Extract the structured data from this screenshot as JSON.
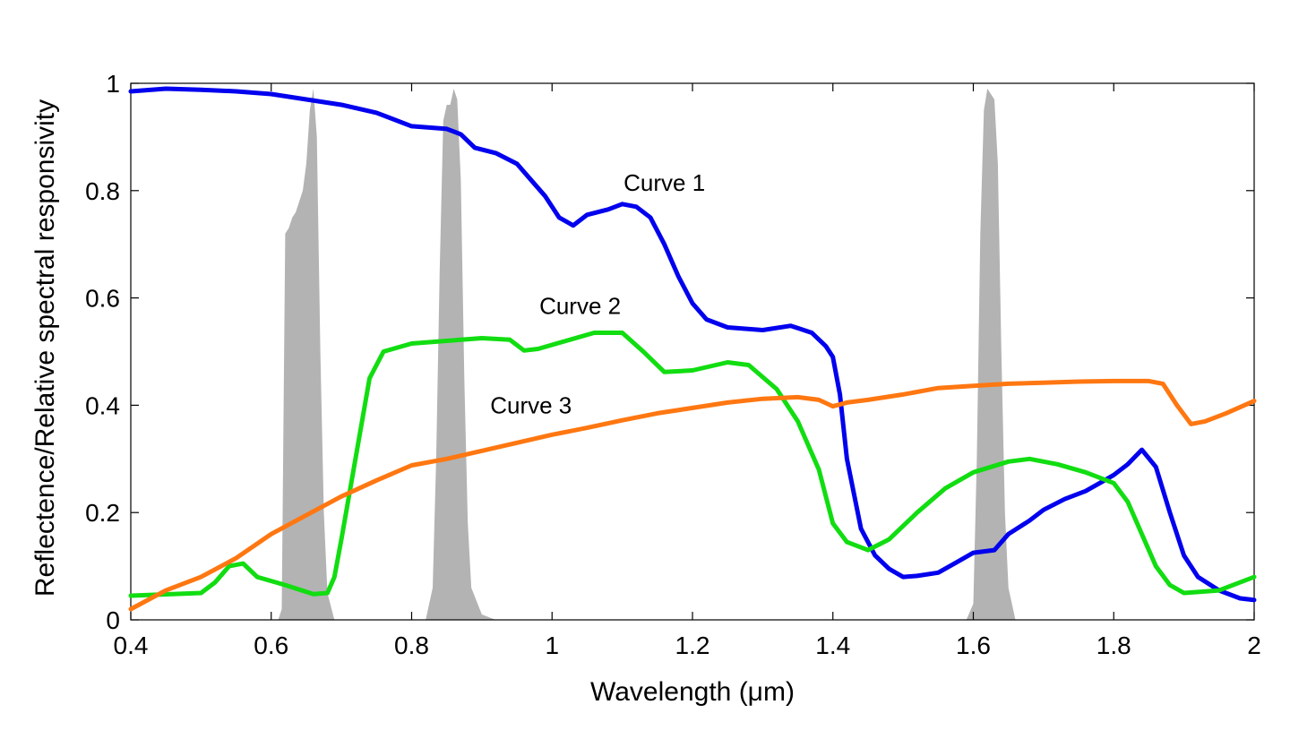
{
  "chart_data": {
    "type": "line",
    "xlabel": "Wavelength (μm)",
    "ylabel": "Reflectence/Relative spectral responsivity",
    "xlim": [
      0.4,
      2.0
    ],
    "ylim": [
      0,
      1.0
    ],
    "x_ticks": [
      0.4,
      0.6,
      0.8,
      1.0,
      1.2,
      1.4,
      1.6,
      1.8,
      2.0
    ],
    "x_tick_labels": [
      "0.4",
      "0.6",
      "0.8",
      "1",
      "1.2",
      "1.4",
      "1.6",
      "1.8",
      "2"
    ],
    "y_ticks": [
      0,
      0.2,
      0.4,
      0.6,
      0.8,
      1.0
    ],
    "y_tick_labels": [
      "0",
      "0.2",
      "0.4",
      "0.6",
      "0.8",
      "1"
    ],
    "grid": false,
    "series": [
      {
        "name": "Curve 1",
        "color": "#0000ee",
        "label_at": [
          1.16,
          0.8
        ],
        "points": [
          [
            0.4,
            0.985
          ],
          [
            0.45,
            0.99
          ],
          [
            0.5,
            0.988
          ],
          [
            0.55,
            0.985
          ],
          [
            0.6,
            0.98
          ],
          [
            0.65,
            0.97
          ],
          [
            0.7,
            0.96
          ],
          [
            0.75,
            0.945
          ],
          [
            0.8,
            0.92
          ],
          [
            0.85,
            0.915
          ],
          [
            0.87,
            0.905
          ],
          [
            0.89,
            0.88
          ],
          [
            0.92,
            0.87
          ],
          [
            0.95,
            0.85
          ],
          [
            0.97,
            0.82
          ],
          [
            0.99,
            0.79
          ],
          [
            1.01,
            0.75
          ],
          [
            1.03,
            0.735
          ],
          [
            1.05,
            0.755
          ],
          [
            1.08,
            0.765
          ],
          [
            1.1,
            0.775
          ],
          [
            1.12,
            0.77
          ],
          [
            1.14,
            0.75
          ],
          [
            1.16,
            0.7
          ],
          [
            1.18,
            0.64
          ],
          [
            1.2,
            0.59
          ],
          [
            1.22,
            0.56
          ],
          [
            1.25,
            0.545
          ],
          [
            1.3,
            0.54
          ],
          [
            1.34,
            0.548
          ],
          [
            1.37,
            0.535
          ],
          [
            1.39,
            0.51
          ],
          [
            1.4,
            0.49
          ],
          [
            1.41,
            0.42
          ],
          [
            1.42,
            0.3
          ],
          [
            1.44,
            0.17
          ],
          [
            1.46,
            0.12
          ],
          [
            1.48,
            0.095
          ],
          [
            1.5,
            0.08
          ],
          [
            1.52,
            0.082
          ],
          [
            1.55,
            0.088
          ],
          [
            1.58,
            0.11
          ],
          [
            1.6,
            0.125
          ],
          [
            1.63,
            0.13
          ],
          [
            1.65,
            0.16
          ],
          [
            1.68,
            0.185
          ],
          [
            1.7,
            0.205
          ],
          [
            1.73,
            0.225
          ],
          [
            1.76,
            0.24
          ],
          [
            1.78,
            0.255
          ],
          [
            1.8,
            0.27
          ],
          [
            1.82,
            0.29
          ],
          [
            1.84,
            0.317
          ],
          [
            1.86,
            0.285
          ],
          [
            1.88,
            0.2
          ],
          [
            1.9,
            0.12
          ],
          [
            1.92,
            0.08
          ],
          [
            1.95,
            0.055
          ],
          [
            1.98,
            0.04
          ],
          [
            2.0,
            0.037
          ]
        ]
      },
      {
        "name": "Curve 2",
        "color": "#11dd11",
        "label_at": [
          1.04,
          0.57
        ],
        "points": [
          [
            0.4,
            0.045
          ],
          [
            0.5,
            0.05
          ],
          [
            0.52,
            0.07
          ],
          [
            0.54,
            0.1
          ],
          [
            0.56,
            0.105
          ],
          [
            0.58,
            0.08
          ],
          [
            0.62,
            0.065
          ],
          [
            0.66,
            0.048
          ],
          [
            0.68,
            0.05
          ],
          [
            0.69,
            0.08
          ],
          [
            0.7,
            0.15
          ],
          [
            0.72,
            0.3
          ],
          [
            0.74,
            0.45
          ],
          [
            0.76,
            0.5
          ],
          [
            0.8,
            0.515
          ],
          [
            0.85,
            0.52
          ],
          [
            0.9,
            0.525
          ],
          [
            0.94,
            0.522
          ],
          [
            0.96,
            0.502
          ],
          [
            0.98,
            0.505
          ],
          [
            1.02,
            0.52
          ],
          [
            1.06,
            0.535
          ],
          [
            1.1,
            0.535
          ],
          [
            1.13,
            0.5
          ],
          [
            1.16,
            0.462
          ],
          [
            1.2,
            0.465
          ],
          [
            1.25,
            0.48
          ],
          [
            1.28,
            0.475
          ],
          [
            1.32,
            0.43
          ],
          [
            1.35,
            0.37
          ],
          [
            1.38,
            0.28
          ],
          [
            1.4,
            0.18
          ],
          [
            1.42,
            0.145
          ],
          [
            1.45,
            0.13
          ],
          [
            1.48,
            0.15
          ],
          [
            1.52,
            0.2
          ],
          [
            1.56,
            0.245
          ],
          [
            1.6,
            0.275
          ],
          [
            1.65,
            0.295
          ],
          [
            1.68,
            0.3
          ],
          [
            1.72,
            0.29
          ],
          [
            1.76,
            0.275
          ],
          [
            1.8,
            0.255
          ],
          [
            1.82,
            0.22
          ],
          [
            1.84,
            0.16
          ],
          [
            1.86,
            0.1
          ],
          [
            1.88,
            0.065
          ],
          [
            1.9,
            0.05
          ],
          [
            1.95,
            0.055
          ],
          [
            2.0,
            0.08
          ]
        ]
      },
      {
        "name": "Curve 3",
        "color": "#ff7711",
        "label_at": [
          0.97,
          0.385
        ],
        "points": [
          [
            0.4,
            0.02
          ],
          [
            0.45,
            0.055
          ],
          [
            0.5,
            0.08
          ],
          [
            0.55,
            0.115
          ],
          [
            0.6,
            0.16
          ],
          [
            0.65,
            0.195
          ],
          [
            0.7,
            0.23
          ],
          [
            0.75,
            0.26
          ],
          [
            0.8,
            0.288
          ],
          [
            0.85,
            0.3
          ],
          [
            0.9,
            0.315
          ],
          [
            0.95,
            0.33
          ],
          [
            1.0,
            0.345
          ],
          [
            1.05,
            0.358
          ],
          [
            1.1,
            0.372
          ],
          [
            1.15,
            0.385
          ],
          [
            1.2,
            0.395
          ],
          [
            1.25,
            0.405
          ],
          [
            1.3,
            0.412
          ],
          [
            1.35,
            0.415
          ],
          [
            1.38,
            0.41
          ],
          [
            1.4,
            0.398
          ],
          [
            1.42,
            0.405
          ],
          [
            1.45,
            0.41
          ],
          [
            1.5,
            0.42
          ],
          [
            1.55,
            0.432
          ],
          [
            1.6,
            0.436
          ],
          [
            1.65,
            0.44
          ],
          [
            1.7,
            0.442
          ],
          [
            1.75,
            0.444
          ],
          [
            1.8,
            0.445
          ],
          [
            1.85,
            0.445
          ],
          [
            1.87,
            0.44
          ],
          [
            1.89,
            0.4
          ],
          [
            1.91,
            0.365
          ],
          [
            1.93,
            0.37
          ],
          [
            1.96,
            0.385
          ],
          [
            2.0,
            0.408
          ]
        ]
      }
    ],
    "filled_areas": [
      {
        "color": "#b3b3b3",
        "points": [
          [
            0.61,
            0
          ],
          [
            0.615,
            0.02
          ],
          [
            0.62,
            0.72
          ],
          [
            0.625,
            0.73
          ],
          [
            0.63,
            0.75
          ],
          [
            0.635,
            0.76
          ],
          [
            0.64,
            0.78
          ],
          [
            0.645,
            0.8
          ],
          [
            0.65,
            0.85
          ],
          [
            0.655,
            0.95
          ],
          [
            0.66,
            0.99
          ],
          [
            0.665,
            0.9
          ],
          [
            0.67,
            0.5
          ],
          [
            0.675,
            0.2
          ],
          [
            0.68,
            0.05
          ],
          [
            0.69,
            0
          ]
        ]
      },
      {
        "color": "#b3b3b3",
        "points": [
          [
            0.82,
            0
          ],
          [
            0.83,
            0.06
          ],
          [
            0.835,
            0.3
          ],
          [
            0.84,
            0.65
          ],
          [
            0.845,
            0.93
          ],
          [
            0.85,
            0.96
          ],
          [
            0.855,
            0.96
          ],
          [
            0.86,
            0.99
          ],
          [
            0.865,
            0.97
          ],
          [
            0.87,
            0.82
          ],
          [
            0.875,
            0.45
          ],
          [
            0.88,
            0.18
          ],
          [
            0.885,
            0.06
          ],
          [
            0.9,
            0.01
          ],
          [
            0.92,
            0
          ]
        ]
      },
      {
        "color": "#b3b3b3",
        "points": [
          [
            1.59,
            0
          ],
          [
            1.6,
            0.03
          ],
          [
            1.605,
            0.3
          ],
          [
            1.61,
            0.72
          ],
          [
            1.615,
            0.95
          ],
          [
            1.62,
            0.99
          ],
          [
            1.625,
            0.98
          ],
          [
            1.63,
            0.97
          ],
          [
            1.635,
            0.85
          ],
          [
            1.64,
            0.5
          ],
          [
            1.645,
            0.2
          ],
          [
            1.65,
            0.06
          ],
          [
            1.66,
            0
          ]
        ]
      }
    ]
  }
}
